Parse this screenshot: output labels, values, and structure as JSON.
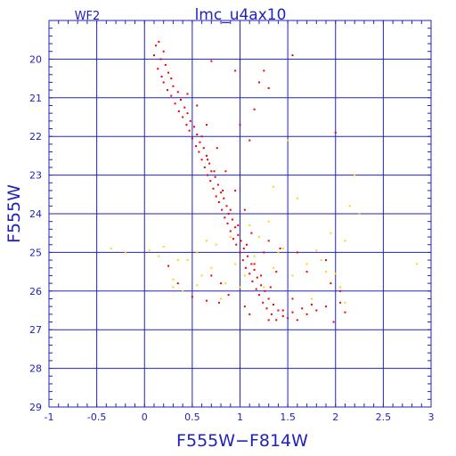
{
  "chart_data": {
    "type": "scatter",
    "title": "lmc_u4ax10",
    "subtitle": "WF2",
    "xlabel": "F555W−F814W",
    "ylabel": "F555W",
    "xlim": [
      -1,
      3
    ],
    "ylim": [
      29,
      19
    ],
    "y_inverted": true,
    "xticks": [
      -1,
      -0.5,
      0,
      0.5,
      1,
      1.5,
      2,
      2.5,
      3
    ],
    "xtick_labels": [
      "-1",
      "-0.5",
      "0",
      "0.5",
      "1",
      "1.5",
      "2",
      "2.5",
      "3"
    ],
    "yticks": [
      20,
      21,
      22,
      23,
      24,
      25,
      26,
      27,
      28,
      29
    ],
    "ytick_labels": [
      "20",
      "21",
      "22",
      "23",
      "24",
      "25",
      "26",
      "27",
      "28",
      "29"
    ],
    "grid": true,
    "colors": {
      "axis": "#2222bb",
      "grid": "#2222bb",
      "primary": "#ee0000",
      "secondary": "#ffd700"
    },
    "series": [
      {
        "color": "#ee0000",
        "points": [
          [
            0.15,
            19.55
          ],
          [
            0.12,
            19.65
          ],
          [
            0.2,
            19.8
          ],
          [
            0.1,
            19.9
          ],
          [
            0.17,
            20.0
          ],
          [
            0.22,
            20.15
          ],
          [
            0.14,
            20.25
          ],
          [
            0.25,
            20.35
          ],
          [
            0.18,
            20.45
          ],
          [
            0.28,
            20.5
          ],
          [
            0.2,
            20.6
          ],
          [
            0.3,
            20.7
          ],
          [
            0.24,
            20.8
          ],
          [
            0.35,
            20.85
          ],
          [
            0.28,
            20.95
          ],
          [
            0.38,
            21.05
          ],
          [
            0.32,
            21.15
          ],
          [
            0.42,
            21.25
          ],
          [
            0.36,
            21.35
          ],
          [
            0.45,
            21.4
          ],
          [
            0.4,
            21.5
          ],
          [
            0.48,
            21.6
          ],
          [
            0.44,
            21.7
          ],
          [
            0.52,
            21.75
          ],
          [
            0.47,
            21.85
          ],
          [
            0.55,
            21.95
          ],
          [
            0.5,
            22.05
          ],
          [
            0.58,
            22.15
          ],
          [
            0.54,
            22.25
          ],
          [
            0.62,
            22.3
          ],
          [
            0.57,
            22.4
          ],
          [
            0.65,
            22.5
          ],
          [
            0.6,
            22.6
          ],
          [
            0.68,
            22.7
          ],
          [
            0.63,
            22.8
          ],
          [
            0.7,
            22.9
          ],
          [
            0.66,
            23.0
          ],
          [
            0.74,
            23.05
          ],
          [
            0.69,
            23.15
          ],
          [
            0.77,
            23.25
          ],
          [
            0.72,
            23.35
          ],
          [
            0.8,
            23.45
          ],
          [
            0.75,
            23.55
          ],
          [
            0.83,
            23.6
          ],
          [
            0.78,
            23.7
          ],
          [
            0.86,
            23.8
          ],
          [
            0.81,
            23.9
          ],
          [
            0.88,
            24.0
          ],
          [
            0.84,
            24.1
          ],
          [
            0.92,
            24.15
          ],
          [
            0.87,
            24.25
          ],
          [
            0.95,
            24.35
          ],
          [
            0.9,
            24.45
          ],
          [
            0.98,
            24.55
          ],
          [
            0.93,
            24.65
          ],
          [
            1.01,
            24.7
          ],
          [
            0.96,
            24.8
          ],
          [
            1.04,
            24.9
          ],
          [
            1.0,
            25.0
          ],
          [
            1.08,
            25.1
          ],
          [
            1.03,
            25.2
          ],
          [
            1.12,
            25.3
          ],
          [
            1.06,
            25.4
          ],
          [
            1.15,
            25.45
          ],
          [
            1.1,
            25.55
          ],
          [
            1.18,
            25.65
          ],
          [
            1.13,
            25.75
          ],
          [
            1.22,
            25.85
          ],
          [
            1.17,
            25.95
          ],
          [
            1.26,
            26.0
          ],
          [
            1.2,
            26.1
          ],
          [
            1.3,
            26.2
          ],
          [
            1.24,
            26.3
          ],
          [
            1.35,
            26.35
          ],
          [
            1.28,
            26.45
          ],
          [
            1.4,
            26.5
          ],
          [
            1.33,
            26.6
          ],
          [
            1.45,
            26.65
          ],
          [
            1.38,
            26.75
          ],
          [
            1.5,
            26.7
          ],
          [
            1.55,
            26.55
          ],
          [
            1.6,
            26.75
          ],
          [
            1.7,
            26.6
          ],
          [
            1.65,
            26.45
          ],
          [
            1.8,
            26.5
          ],
          [
            1.75,
            26.35
          ],
          [
            1.9,
            26.4
          ],
          [
            2.1,
            26.55
          ],
          [
            1.98,
            26.8
          ],
          [
            2.05,
            26.3
          ],
          [
            0.6,
            22.0
          ],
          [
            0.66,
            22.6
          ],
          [
            0.73,
            22.9
          ],
          [
            0.82,
            23.4
          ],
          [
            0.9,
            23.9
          ],
          [
            0.98,
            24.3
          ],
          [
            1.07,
            24.8
          ],
          [
            1.15,
            25.3
          ],
          [
            1.22,
            25.6
          ],
          [
            1.32,
            25.9
          ],
          [
            0.55,
            21.2
          ],
          [
            0.45,
            20.9
          ],
          [
            0.65,
            21.7
          ],
          [
            0.76,
            22.3
          ],
          [
            0.85,
            22.9
          ],
          [
            0.95,
            23.4
          ],
          [
            1.05,
            23.9
          ],
          [
            1.12,
            24.5
          ],
          [
            1.25,
            25.0
          ],
          [
            1.38,
            25.5
          ],
          [
            0.7,
            20.05
          ],
          [
            1.2,
            20.6
          ],
          [
            1.25,
            20.3
          ],
          [
            1.3,
            20.75
          ],
          [
            1.55,
            19.9
          ],
          [
            1.0,
            21.7
          ],
          [
            1.1,
            22.1
          ],
          [
            2.0,
            21.9
          ],
          [
            0.95,
            20.3
          ],
          [
            1.15,
            21.3
          ],
          [
            0.25,
            25.35
          ],
          [
            0.35,
            25.8
          ],
          [
            0.5,
            26.15
          ],
          [
            0.65,
            26.25
          ],
          [
            0.78,
            26.3
          ],
          [
            0.88,
            26.1
          ],
          [
            1.05,
            26.4
          ],
          [
            1.1,
            26.6
          ],
          [
            1.3,
            26.75
          ],
          [
            1.45,
            26.5
          ],
          [
            1.9,
            25.2
          ],
          [
            1.7,
            25.5
          ],
          [
            1.95,
            25.8
          ],
          [
            2.05,
            26.0
          ],
          [
            1.6,
            25.0
          ],
          [
            1.3,
            24.7
          ],
          [
            1.42,
            24.9
          ],
          [
            1.55,
            26.2
          ],
          [
            0.8,
            25.8
          ],
          [
            0.7,
            25.6
          ]
        ]
      },
      {
        "color": "#ffd700",
        "points": [
          [
            -0.35,
            24.9
          ],
          [
            -0.2,
            25.0
          ],
          [
            0.05,
            24.95
          ],
          [
            0.15,
            25.1
          ],
          [
            0.25,
            25.35
          ],
          [
            0.3,
            25.7
          ],
          [
            0.45,
            25.2
          ],
          [
            0.55,
            25.0
          ],
          [
            0.6,
            25.6
          ],
          [
            0.7,
            25.4
          ],
          [
            0.75,
            24.8
          ],
          [
            0.85,
            25.8
          ],
          [
            0.95,
            25.3
          ],
          [
            1.05,
            25.6
          ],
          [
            1.15,
            25.1
          ],
          [
            1.2,
            24.6
          ],
          [
            1.25,
            25.9
          ],
          [
            1.35,
            25.4
          ],
          [
            1.45,
            24.9
          ],
          [
            1.55,
            25.6
          ],
          [
            1.6,
            25.0
          ],
          [
            1.7,
            25.3
          ],
          [
            1.8,
            24.95
          ],
          [
            1.9,
            25.5
          ],
          [
            2.0,
            25.55
          ],
          [
            2.05,
            25.9
          ],
          [
            2.1,
            24.7
          ],
          [
            2.25,
            24.0
          ],
          [
            2.85,
            25.3
          ],
          [
            1.6,
            23.6
          ],
          [
            1.35,
            23.3
          ],
          [
            1.5,
            22.1
          ],
          [
            0.3,
            25.9
          ],
          [
            0.4,
            26.0
          ],
          [
            0.2,
            24.85
          ],
          [
            0.9,
            24.6
          ],
          [
            1.1,
            24.3
          ],
          [
            1.3,
            24.2
          ],
          [
            2.15,
            23.8
          ],
          [
            0.55,
            25.85
          ],
          [
            1.95,
            24.5
          ],
          [
            2.1,
            26.3
          ],
          [
            1.75,
            26.2
          ],
          [
            0.65,
            24.7
          ],
          [
            0.35,
            25.2
          ],
          [
            1.85,
            25.2
          ],
          [
            1.4,
            25.0
          ],
          [
            2.2,
            23.0
          ],
          [
            1.0,
            25.9
          ],
          [
            0.8,
            26.2
          ]
        ]
      }
    ]
  }
}
